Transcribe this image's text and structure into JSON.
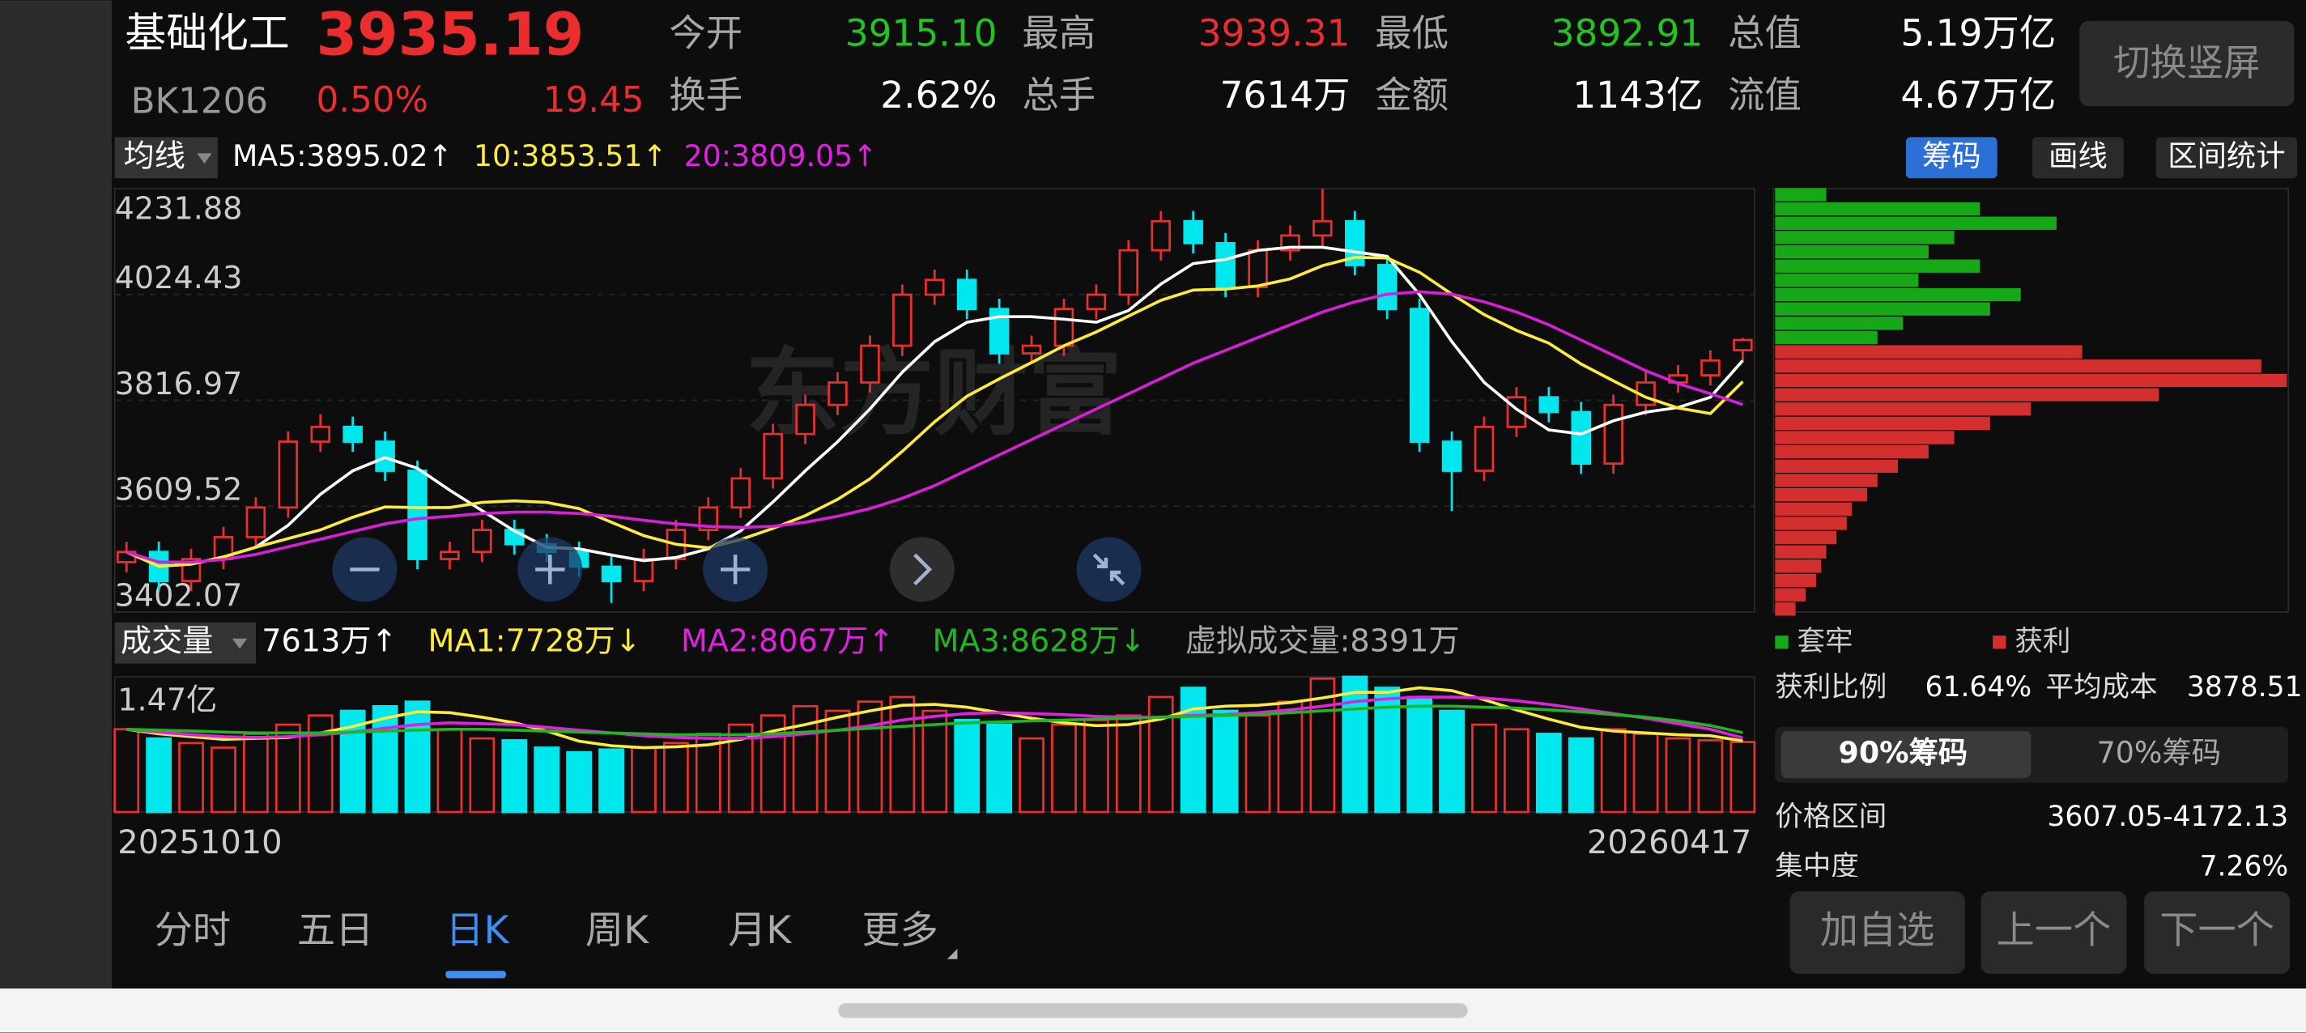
{
  "header": {
    "name": "基础化工",
    "price": "3935.19",
    "code": "BK1206",
    "change_pct": "0.50%",
    "change": "19.45",
    "stats": [
      {
        "label": "今开",
        "value": "3915.10",
        "color": "#22c422"
      },
      {
        "label": "最高",
        "value": "3939.31",
        "color": "#ec2d2d"
      },
      {
        "label": "最低",
        "value": "3892.91",
        "color": "#22c422"
      },
      {
        "label": "总值",
        "value": "5.19万亿",
        "color": "#ffffff"
      },
      {
        "label": "换手",
        "value": "2.62%",
        "color": "#ffffff"
      },
      {
        "label": "总手",
        "value": "7614万",
        "color": "#ffffff"
      },
      {
        "label": "金额",
        "value": "1143亿",
        "color": "#ffffff"
      },
      {
        "label": "流值",
        "value": "4.67万亿",
        "color": "#ffffff"
      }
    ],
    "button": "切换竖屏"
  },
  "ma_bar": {
    "selector": "均线",
    "items": [
      {
        "text": "MA5:3895.02↑",
        "color": "#ffffff"
      },
      {
        "text": "10:3853.51↑",
        "color": "#ffeb3b"
      },
      {
        "text": "20:3809.05↑",
        "color": "#e021e0"
      }
    ]
  },
  "tools": [
    "筹码",
    "画线",
    "区间统计"
  ],
  "watermark": "东方财富",
  "volume_bar": {
    "selector": "成交量",
    "items": [
      {
        "text": "7613万↑",
        "color": "#ffffff"
      },
      {
        "text": "MA1:7728万↓",
        "color": "#ffeb3b"
      },
      {
        "text": "MA2:8067万↑",
        "color": "#e021e0"
      },
      {
        "text": "MA3:8628万↓",
        "color": "#22b422"
      },
      {
        "text": "虚拟成交量:8391万",
        "color": "#aaaaaa"
      }
    ]
  },
  "chart_data": [
    {
      "type": "candlestick",
      "up_color": "#e8312f",
      "down_color": "#00e8ee",
      "ylim": [
        3402.07,
        4231.88
      ],
      "yticks": [
        4231.88,
        4024.43,
        3816.97,
        3609.52,
        3402.07
      ],
      "grid": true,
      "opens": [
        3500,
        3520,
        3463,
        3506,
        3549,
        3607,
        3736,
        3765,
        3736,
        3679,
        3506,
        3520,
        3563,
        3535,
        3520,
        3491,
        3463,
        3506,
        3563,
        3607,
        3664,
        3751,
        3808,
        3852,
        3924,
        4024,
        4053,
        3996,
        3909,
        3924,
        3996,
        4024,
        4111,
        4168,
        4125,
        4039,
        4111,
        4140,
        4168,
        4082,
        3996,
        3736,
        3679,
        3765,
        3823,
        3794,
        3693,
        3808,
        3852,
        3866,
        3915.1
      ],
      "highs": [
        3540,
        3540,
        3526,
        3569,
        3627,
        3756,
        3790,
        3785,
        3756,
        3699,
        3540,
        3583,
        3583,
        3555,
        3540,
        3511,
        3526,
        3583,
        3627,
        3684,
        3771,
        3828,
        3872,
        3944,
        4044,
        4073,
        4073,
        4016,
        3944,
        4016,
        4044,
        4131,
        4188,
        4188,
        4145,
        4131,
        4160,
        4231,
        4188,
        4102,
        4016,
        3756,
        3785,
        3843,
        3843,
        3814,
        3828,
        3872,
        3886,
        3915,
        3939.31
      ],
      "lows": [
        3480,
        3443,
        3443,
        3486,
        3529,
        3587,
        3716,
        3716,
        3659,
        3486,
        3486,
        3500,
        3515,
        3500,
        3471,
        3420,
        3443,
        3486,
        3543,
        3587,
        3644,
        3731,
        3788,
        3832,
        3904,
        4004,
        3976,
        3889,
        3889,
        3904,
        3976,
        4004,
        4091,
        4105,
        4019,
        4019,
        4091,
        4120,
        4062,
        3976,
        3716,
        3600,
        3659,
        3745,
        3774,
        3673,
        3673,
        3788,
        3832,
        3846,
        3892.91
      ],
      "closes": [
        3520,
        3463,
        3506,
        3549,
        3607,
        3736,
        3765,
        3736,
        3679,
        3506,
        3520,
        3563,
        3535,
        3520,
        3491,
        3463,
        3506,
        3563,
        3607,
        3664,
        3751,
        3808,
        3852,
        3924,
        4024,
        4053,
        3996,
        3909,
        3924,
        3996,
        4024,
        4111,
        4168,
        4125,
        4039,
        4111,
        4140,
        4168,
        4082,
        3996,
        3736,
        3679,
        3765,
        3823,
        3794,
        3693,
        3808,
        3852,
        3866,
        3895,
        3935.19
      ],
      "series": [
        {
          "color": "#ffffff",
          "values": [
            3520,
            3492,
            3496,
            3510,
            3529,
            3572,
            3633,
            3679,
            3705,
            3684,
            3641,
            3601,
            3561,
            3529,
            3526,
            3514,
            3503,
            3509,
            3526,
            3561,
            3618,
            3679,
            3736,
            3800,
            3872,
            3932,
            3970,
            3981,
            3981,
            3976,
            3970,
            3993,
            4045,
            4085,
            4093,
            4111,
            4117,
            4117,
            4108,
            4099,
            4024,
            3932,
            3852,
            3800,
            3759,
            3751,
            3777,
            3794,
            3803,
            3823,
            3895.02
          ]
        },
        {
          "color": "#ffeb3b",
          "values": [
            3520,
            3492,
            3496,
            3510,
            3529,
            3546,
            3563,
            3588,
            3608,
            3607,
            3607,
            3617,
            3620,
            3617,
            3605,
            3578,
            3552,
            3535,
            3528,
            3544,
            3566,
            3591,
            3623,
            3663,
            3717,
            3775,
            3825,
            3859,
            3891,
            3924,
            3951,
            3982,
            4013,
            4033,
            4035,
            4041,
            4055,
            4081,
            4097,
            4096,
            4068,
            4025,
            3985,
            3954,
            3929,
            3888,
            3855,
            3823,
            3802,
            3791,
            3853.51
          ]
        },
        {
          "color": "#d81fd8",
          "values": [
            3520,
            3500,
            3500,
            3505,
            3515,
            3530,
            3545,
            3560,
            3575,
            3585,
            3590,
            3595,
            3598,
            3598,
            3595,
            3590,
            3582,
            3575,
            3570,
            3568,
            3570,
            3578,
            3590,
            3605,
            3625,
            3650,
            3680,
            3710,
            3740,
            3770,
            3800,
            3830,
            3860,
            3890,
            3915,
            3940,
            3965,
            3990,
            4010,
            4025,
            4030,
            4025,
            4010,
            3990,
            3965,
            3935,
            3905,
            3875,
            3850,
            3830,
            3809.05
          ]
        }
      ]
    },
    {
      "type": "bar",
      "categories": [
        "20251010",
        null,
        null,
        null,
        null,
        null,
        null,
        null,
        null,
        null,
        null,
        null,
        null,
        null,
        null,
        null,
        null,
        null,
        null,
        null,
        null,
        null,
        null,
        null,
        null,
        null,
        null,
        null,
        null,
        null,
        null,
        null,
        null,
        null,
        null,
        null,
        null,
        null,
        null,
        null,
        null,
        null,
        null,
        null,
        null,
        null,
        null,
        null,
        null,
        null,
        "20260417"
      ],
      "values": [
        9000,
        8000,
        7500,
        7000,
        8500,
        9500,
        10500,
        11000,
        11500,
        12000,
        9000,
        8000,
        7800,
        7000,
        6500,
        6800,
        7000,
        7500,
        8500,
        9500,
        10500,
        11500,
        11000,
        12000,
        12500,
        11000,
        10000,
        9500,
        8000,
        9500,
        10000,
        10500,
        12500,
        13500,
        11000,
        10500,
        12000,
        14500,
        14700,
        13500,
        12500,
        11000,
        9500,
        9000,
        8500,
        8000,
        9000,
        8500,
        8000,
        7800,
        7613
      ],
      "ylim": [
        0,
        14700
      ],
      "yticks": [
        {
          "value": 14700,
          "label": "1.47亿"
        }
      ],
      "series": [
        {
          "color": "#ffeb3b",
          "values": [
            9000,
            8500,
            8200,
            7900,
            8000,
            8100,
            8600,
            9300,
            10200,
            10900,
            10800,
            10300,
            9700,
            8800,
            7700,
            7200,
            7000,
            7100,
            7300,
            7900,
            8800,
            9500,
            10300,
            11000,
            11600,
            11700,
            11400,
            10800,
            10200,
            9700,
            9400,
            9500,
            10100,
            11200,
            11500,
            11600,
            11900,
            12400,
            13000,
            13000,
            13500,
            13200,
            12200,
            11100,
            10100,
            9200,
            8800,
            8600,
            8400,
            8300,
            7728
          ]
        },
        {
          "color": "#e021e0",
          "values": [
            9000,
            8700,
            8400,
            8200,
            8100,
            8200,
            8400,
            8700,
            9100,
            9500,
            9700,
            9600,
            9500,
            9200,
            8900,
            8600,
            8300,
            8100,
            8000,
            8000,
            8200,
            8500,
            8900,
            9400,
            10000,
            10400,
            10700,
            10800,
            10700,
            10600,
            10400,
            10300,
            10300,
            10500,
            10600,
            10800,
            11100,
            11500,
            12000,
            12300,
            12500,
            12500,
            12400,
            12100,
            11700,
            11200,
            10700,
            10200,
            9600,
            9000,
            8067
          ]
        },
        {
          "color": "#22b422",
          "values": [
            9000,
            8900,
            8800,
            8700,
            8600,
            8600,
            8600,
            8700,
            8800,
            8900,
            9000,
            9000,
            8900,
            8800,
            8700,
            8600,
            8500,
            8400,
            8400,
            8400,
            8500,
            8700,
            8900,
            9100,
            9300,
            9500,
            9700,
            9800,
            9900,
            10000,
            10100,
            10200,
            10300,
            10400,
            10500,
            10600,
            10800,
            11000,
            11200,
            11400,
            11500,
            11500,
            11400,
            11300,
            11100,
            10900,
            10600,
            10300,
            9900,
            9400,
            8628
          ]
        }
      ]
    },
    {
      "type": "hbar",
      "ylim": [
        3402.07,
        4231.88
      ],
      "xlim": [
        0,
        100
      ],
      "series": [
        {
          "name": "套牢",
          "color": "#16a816",
          "prices": [
            4220,
            4192,
            4164,
            4136,
            4108,
            4080,
            4052,
            4024,
            3996,
            3968,
            3940
          ],
          "values": [
            10,
            40,
            55,
            35,
            30,
            40,
            28,
            48,
            42,
            25,
            20
          ]
        },
        {
          "name": "获利",
          "color": "#d42f2f",
          "prices": [
            3912,
            3884,
            3856,
            3828,
            3800,
            3772,
            3744,
            3716,
            3688,
            3660,
            3632,
            3604,
            3576,
            3548,
            3520,
            3492,
            3464,
            3436,
            3408
          ],
          "values": [
            60,
            95,
            100,
            75,
            50,
            42,
            35,
            30,
            24,
            20,
            18,
            15,
            14,
            12,
            10,
            9,
            8,
            6,
            4
          ]
        }
      ]
    }
  ],
  "profit": [
    {
      "label": "获利比例",
      "value": "61.64%"
    },
    {
      "label": "平均成本",
      "value": "3878.51"
    }
  ],
  "chip_tabs": [
    "90%筹码",
    "70%筹码"
  ],
  "chip_rows": [
    {
      "label": "价格区间",
      "value": "3607.05-4172.13"
    },
    {
      "label": "集中度",
      "value": "7.26%"
    }
  ],
  "period_tabs": {
    "items": [
      "分时",
      "五日",
      "日K",
      "周K",
      "月K",
      "更多"
    ],
    "active": 2
  },
  "buttons": [
    "加自选",
    "上一个",
    "下一个"
  ]
}
